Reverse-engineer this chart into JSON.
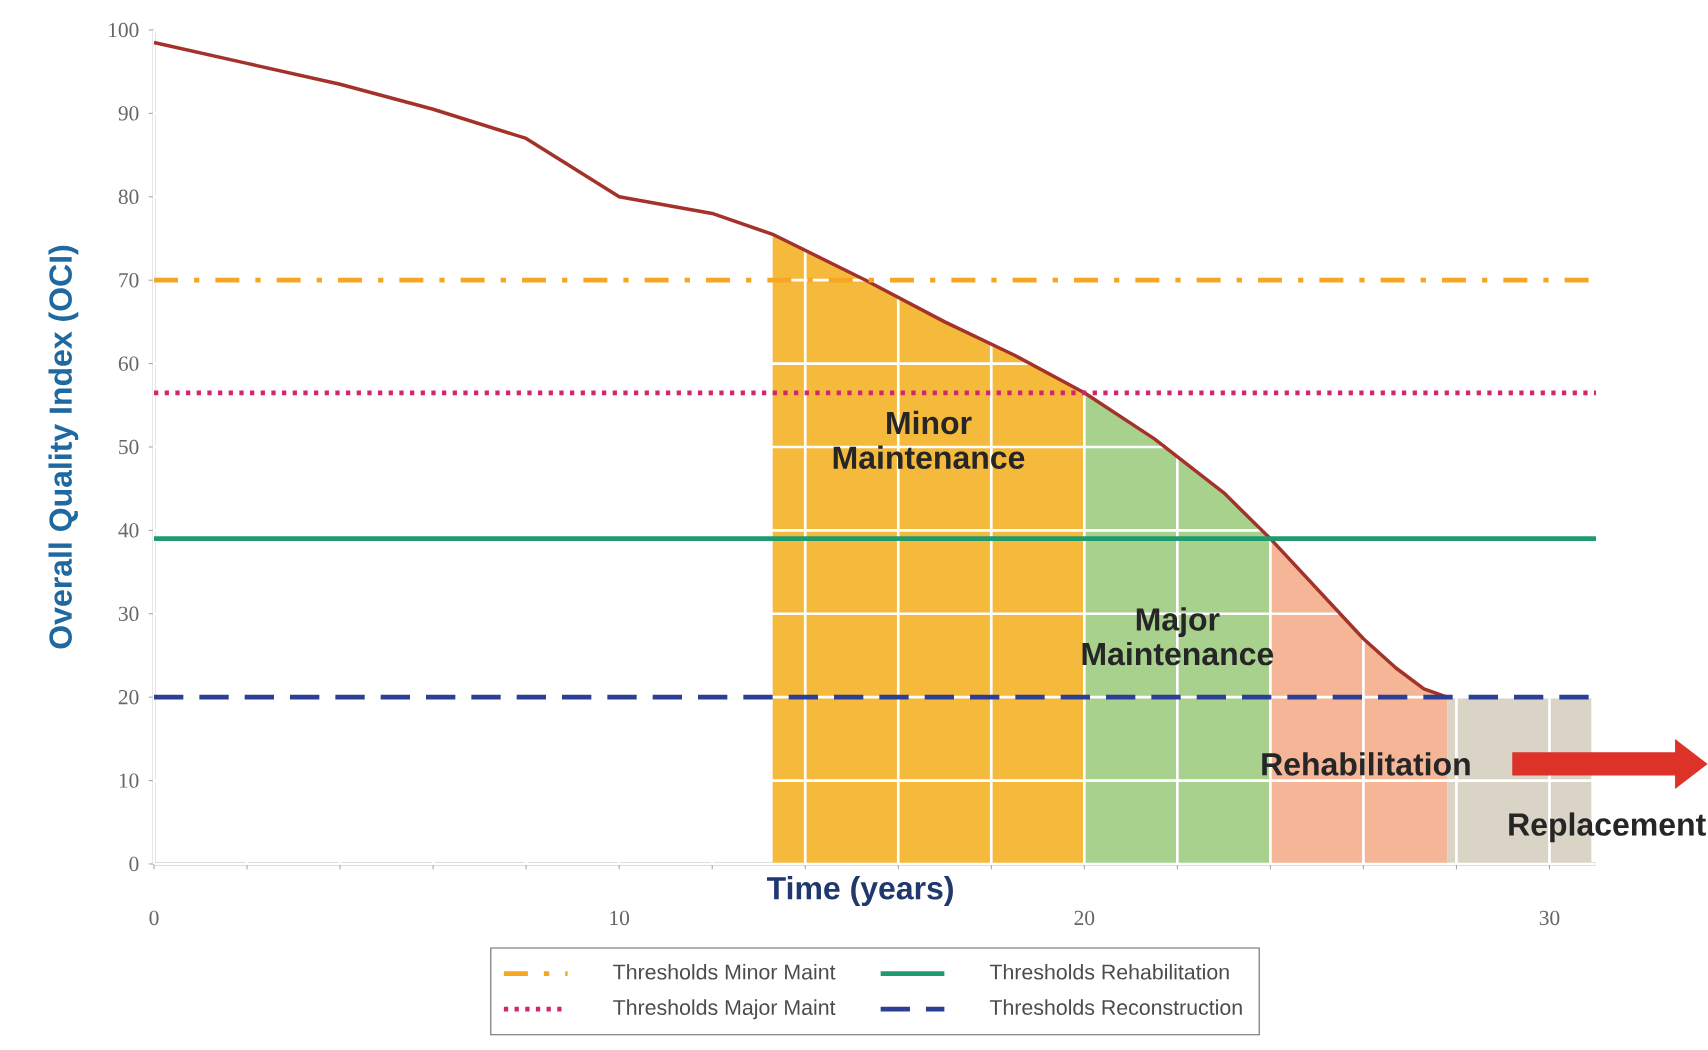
{
  "chart_data": {
    "type": "line",
    "xlabel": "Time (years)",
    "ylabel": "Overall Quality Index (OCI)",
    "xlim": [
      0,
      31
    ],
    "ylim": [
      0,
      100
    ],
    "xticks": [
      0,
      {
        "value": 2,
        "label": null
      },
      {
        "value": 4,
        "label": null
      },
      {
        "value": 6,
        "label": null
      },
      {
        "value": 8,
        "label": null
      },
      10,
      {
        "value": 12,
        "label": null
      },
      {
        "value": 14,
        "label": null
      },
      {
        "value": 16,
        "label": null
      },
      {
        "value": 18,
        "label": null
      },
      20,
      {
        "value": 22,
        "label": null
      },
      {
        "value": 24,
        "label": null
      },
      {
        "value": 26,
        "label": null
      },
      {
        "value": 28,
        "label": null
      },
      30
    ],
    "yticks": [
      0,
      10,
      20,
      30,
      40,
      50,
      60,
      70,
      80,
      90,
      100
    ],
    "grid": true,
    "legend": "bottom",
    "series": [
      {
        "type": "area",
        "name": "Minor Maintenance",
        "color": "#f5ba3c",
        "x": [
          13.3,
          15.3,
          17,
          18.5,
          20
        ],
        "values": [
          75.5,
          70,
          65,
          61,
          56.5
        ]
      },
      {
        "type": "area",
        "name": "Major Maintenance",
        "color": "#a9d18e",
        "x": [
          20,
          21.5,
          23,
          24
        ],
        "values": [
          56.5,
          51,
          44.5,
          39
        ]
      },
      {
        "type": "area",
        "name": "Rehabilitation",
        "color": "#f4b696",
        "x": [
          24,
          25,
          26,
          26.7,
          27.3,
          27.8
        ],
        "values": [
          39,
          33,
          27,
          23.5,
          21,
          20
        ]
      },
      {
        "type": "area",
        "name": "Replacement",
        "color": "#dad4c6",
        "x": [
          27.8,
          30.9
        ],
        "values": [
          20,
          20
        ]
      },
      {
        "color": "#a3322a",
        "x": [
          0,
          2,
          4,
          6,
          8,
          10,
          12,
          13.3,
          15.3,
          17,
          18.5,
          20,
          21.5,
          23,
          24,
          25,
          26,
          26.7,
          27.3,
          27.8
        ],
        "values": [
          98.5,
          96,
          93.5,
          90.5,
          87,
          80,
          78,
          75.5,
          70,
          65,
          61,
          56.5,
          51,
          44.5,
          39,
          33,
          27,
          23.5,
          21,
          20
        ]
      }
    ],
    "ref_lines": [
      {
        "axis": "y",
        "value": 70,
        "label": "Thresholds Minor Maint",
        "color": "#f5a623",
        "line_style": "dashdot"
      },
      {
        "axis": "y",
        "value": 56.5,
        "label": "Thresholds Major Maint",
        "color": "#d2256c",
        "line_style": "dotted"
      },
      {
        "axis": "y",
        "value": 39,
        "label": "Thresholds Rehabilitation",
        "color": "#1f9a6c",
        "line_style": "solid"
      },
      {
        "axis": "y",
        "value": 20,
        "label": "Thresholds Reconstruction",
        "color": "#2c3f96",
        "line_style": "dashed"
      }
    ]
  }
}
